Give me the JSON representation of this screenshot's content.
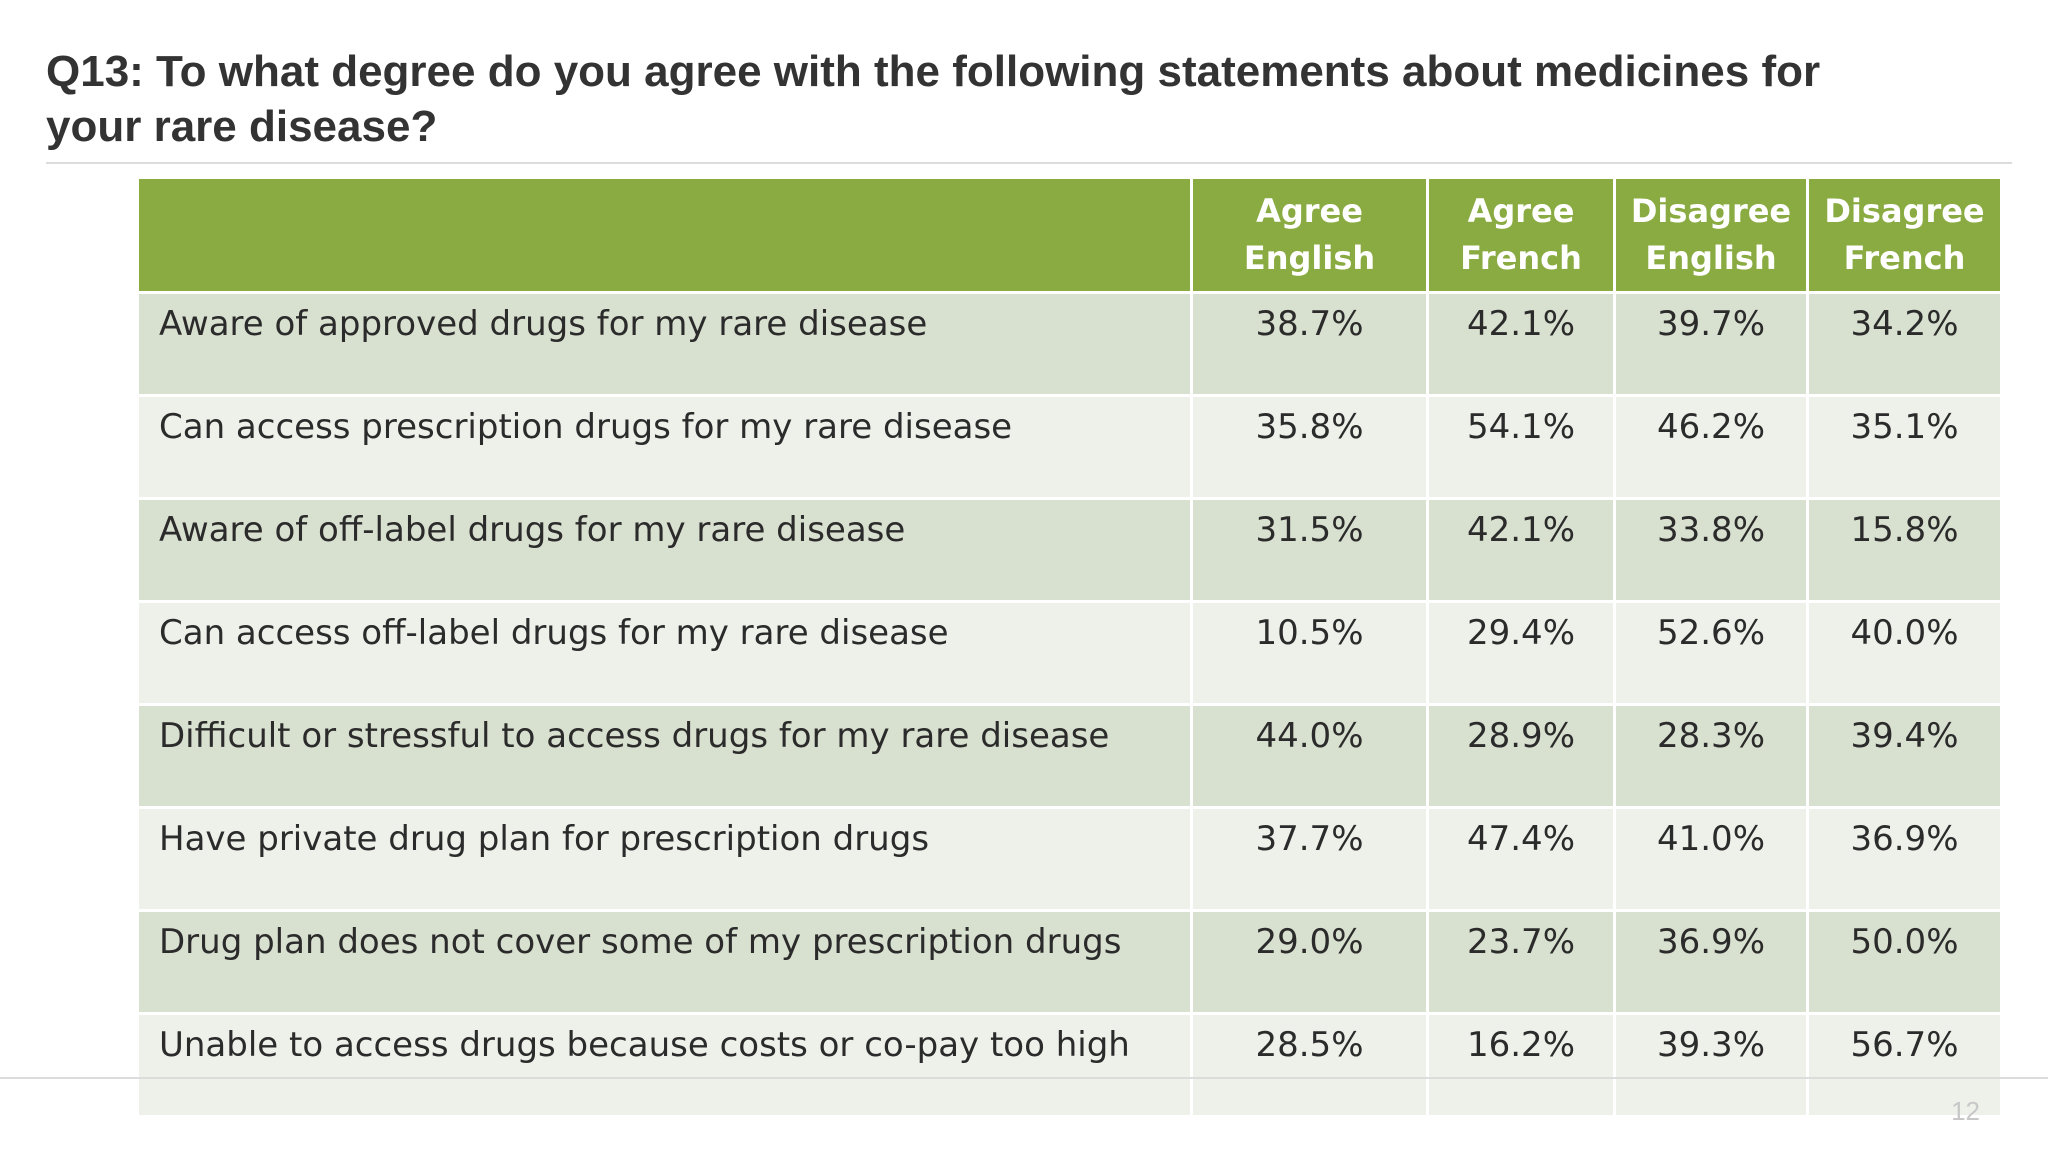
{
  "title": "Q13: To what degree do you agree with the following statements about medicines for your rare disease?",
  "page_number": "12",
  "table": {
    "columns": [
      "",
      "Agree\nEnglish",
      "Agree\nFrench",
      "Disagree\nEnglish",
      "Disagree\nFrench"
    ],
    "rows": [
      {
        "statement": "Aware of approved drugs for my rare disease",
        "values": [
          "38.7%",
          "42.1%",
          "39.7%",
          "34.2%"
        ]
      },
      {
        "statement": "Can access prescription drugs for my rare disease",
        "values": [
          "35.8%",
          "54.1%",
          "46.2%",
          "35.1%"
        ]
      },
      {
        "statement": "Aware of off-label drugs for my rare disease",
        "values": [
          "31.5%",
          "42.1%",
          "33.8%",
          "15.8%"
        ]
      },
      {
        "statement": "Can access off-label drugs for my rare disease",
        "values": [
          "10.5%",
          "29.4%",
          "52.6%",
          "40.0%"
        ]
      },
      {
        "statement": "Difficult or stressful to access drugs for my rare disease",
        "values": [
          "44.0%",
          "28.9%",
          "28.3%",
          "39.4%"
        ]
      },
      {
        "statement": "Have private drug plan for prescription drugs",
        "values": [
          "37.7%",
          "47.4%",
          "41.0%",
          "36.9%"
        ]
      },
      {
        "statement": "Drug plan does not cover some of my prescription drugs",
        "values": [
          "29.0%",
          "23.7%",
          "36.9%",
          "50.0%"
        ]
      },
      {
        "statement": "Unable to access drugs because costs or co-pay too high",
        "values": [
          "28.5%",
          "16.2%",
          "39.3%",
          "56.7%"
        ]
      }
    ]
  },
  "colors": {
    "header_bg": "#8aab42",
    "row_odd_bg": "#d8e0cf",
    "row_even_bg": "#eef0ea",
    "title_text": "#333333"
  }
}
